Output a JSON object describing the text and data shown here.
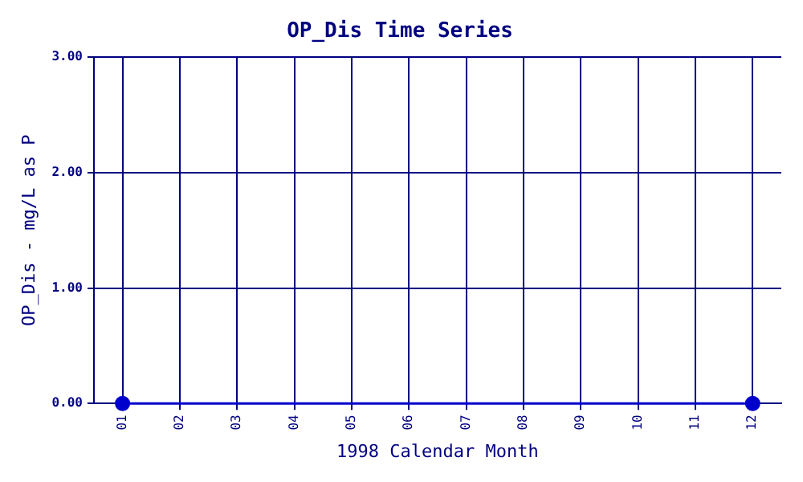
{
  "chart_data": {
    "type": "line",
    "title": "OP_Dis Time Series",
    "xlabel": "1998 Calendar Month",
    "ylabel": "OP_Dis - mg/L as P",
    "categories": [
      "01",
      "02",
      "03",
      "04",
      "05",
      "06",
      "07",
      "08",
      "09",
      "10",
      "11",
      "12"
    ],
    "series": [
      {
        "color": "#0000cc",
        "values": [
          0,
          null,
          null,
          null,
          null,
          null,
          null,
          null,
          null,
          null,
          null,
          0
        ]
      }
    ],
    "ylim": [
      0,
      3
    ],
    "yticks": [
      {
        "value": 0,
        "label": "0.00"
      },
      {
        "value": 1,
        "label": "1.00"
      },
      {
        "value": 2,
        "label": "2.00"
      },
      {
        "value": 3,
        "label": "3.00"
      }
    ],
    "grid": true,
    "marker": "circle",
    "line_style": "solid",
    "legend": false
  }
}
